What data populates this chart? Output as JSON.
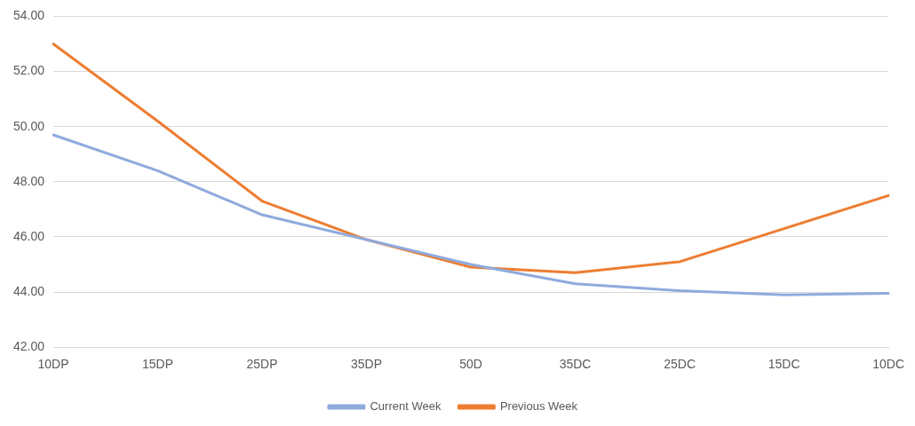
{
  "chart_data": {
    "type": "line",
    "categories": [
      "10DP",
      "15DP",
      "25DP",
      "35DP",
      "50D",
      "35DC",
      "25DC",
      "15DC",
      "10DC"
    ],
    "series": [
      {
        "name": "Current Week",
        "color": "#8faadc",
        "values": [
          49.7,
          48.4,
          46.8,
          45.9,
          45.0,
          44.3,
          44.05,
          43.9,
          43.95
        ]
      },
      {
        "name": "Previous Week",
        "color": "#ed7d31",
        "values": [
          53.0,
          50.2,
          47.3,
          45.9,
          44.9,
          44.7,
          45.1,
          46.3,
          47.5
        ]
      }
    ],
    "ylim": [
      42,
      54
    ],
    "yticks": [
      {
        "value": 42,
        "label": "42.00"
      },
      {
        "value": 44,
        "label": "44.00"
      },
      {
        "value": 46,
        "label": "46.00"
      },
      {
        "value": 48,
        "label": "48.00"
      },
      {
        "value": 50,
        "label": "50.00"
      },
      {
        "value": 52,
        "label": "52.00"
      },
      {
        "value": 54,
        "label": "54.00"
      }
    ],
    "grid": "y",
    "legend": "bottom",
    "marker": "none",
    "line_style": "solid"
  }
}
